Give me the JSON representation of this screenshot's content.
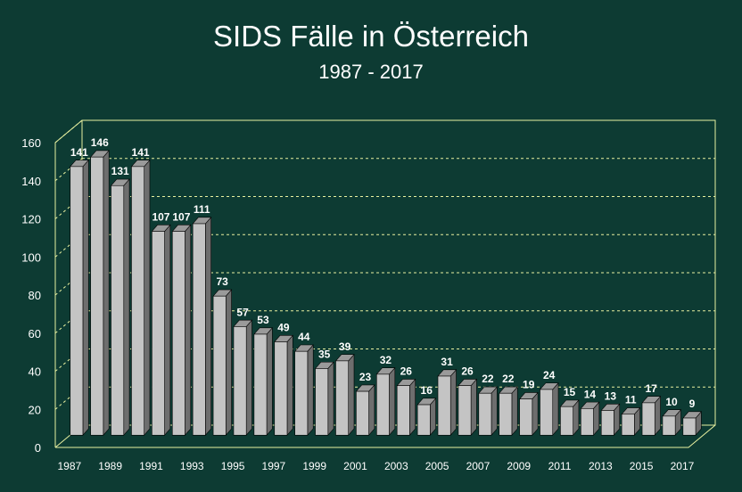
{
  "colors": {
    "background": "#0d3b33",
    "frame": "#e8f0a0",
    "gridline": "#e8f0a0",
    "bar_front": "#c4c4c4",
    "bar_side": "#6e6e6e",
    "bar_top": "#9a9a9a",
    "text": "#ffffff",
    "tick_text": "#ffffff"
  },
  "chart_data": {
    "type": "bar",
    "title": "SIDS Fälle in Österreich",
    "subtitle": "1987 - 2017",
    "xlabel": "",
    "ylabel": "",
    "ylim": [
      0,
      160
    ],
    "yticks": [
      0,
      20,
      40,
      60,
      80,
      100,
      120,
      140,
      160
    ],
    "grid": true,
    "legend": "none",
    "categories": [
      "1987",
      "1988",
      "1989",
      "1990",
      "1991",
      "1992",
      "1993",
      "1994",
      "1995",
      "1996",
      "1997",
      "1998",
      "1999",
      "2000",
      "2001",
      "2002",
      "2003",
      "2004",
      "2005",
      "2006",
      "2007",
      "2008",
      "2009",
      "2010",
      "2011",
      "2012",
      "2013",
      "2014",
      "2015",
      "2016",
      "2017"
    ],
    "xtick_labels": [
      "1987",
      "1989",
      "1991",
      "1993",
      "1995",
      "1997",
      "1999",
      "2001",
      "2003",
      "2005",
      "2007",
      "2009",
      "2011",
      "2013",
      "2015",
      "2017"
    ],
    "values": [
      141,
      146,
      131,
      141,
      107,
      107,
      111,
      73,
      57,
      53,
      49,
      44,
      35,
      39,
      23,
      32,
      26,
      16,
      31,
      26,
      22,
      22,
      19,
      24,
      15,
      14,
      13,
      11,
      17,
      10,
      9
    ]
  }
}
